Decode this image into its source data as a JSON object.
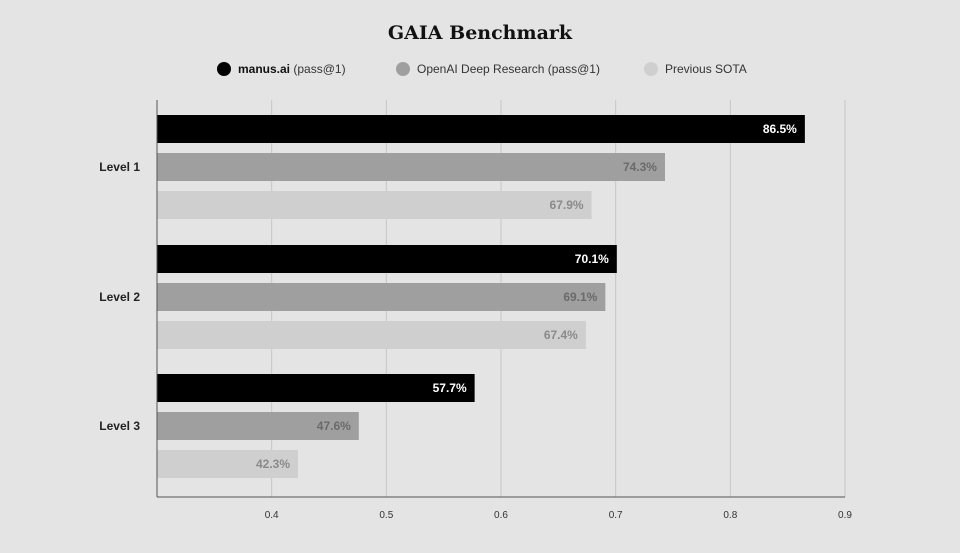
{
  "chart_data": {
    "type": "bar",
    "orientation": "horizontal",
    "title": "GAIA Benchmark",
    "xlabel": "",
    "ylabel": "",
    "categories": [
      "Level 1",
      "Level 2",
      "Level 3"
    ],
    "series": [
      {
        "name": "manus.ai",
        "legend_suffix": " (pass@1)",
        "color": "#000000",
        "label_color": "#ffffff",
        "values": [
          0.865,
          0.701,
          0.577
        ],
        "labels": [
          "86.5%",
          "70.1%",
          "57.7%"
        ]
      },
      {
        "name": "OpenAI Deep Research (pass@1)",
        "color": "#9f9f9f",
        "label_color": "#6a6a6a",
        "values": [
          0.743,
          0.691,
          0.476
        ],
        "labels": [
          "74.3%",
          "69.1%",
          "47.6%"
        ]
      },
      {
        "name": "Previous SOTA",
        "color": "#cfcfcf",
        "label_color": "#8a8a8a",
        "values": [
          0.679,
          0.674,
          0.423
        ],
        "labels": [
          "67.9%",
          "67.4%",
          "42.3%"
        ]
      }
    ],
    "xticks": [
      "0.4",
      "0.5",
      "0.6",
      "0.7",
      "0.8",
      "0.9"
    ],
    "xlim": [
      0.3,
      0.9
    ],
    "grid": true,
    "legend_position": "top-center"
  }
}
